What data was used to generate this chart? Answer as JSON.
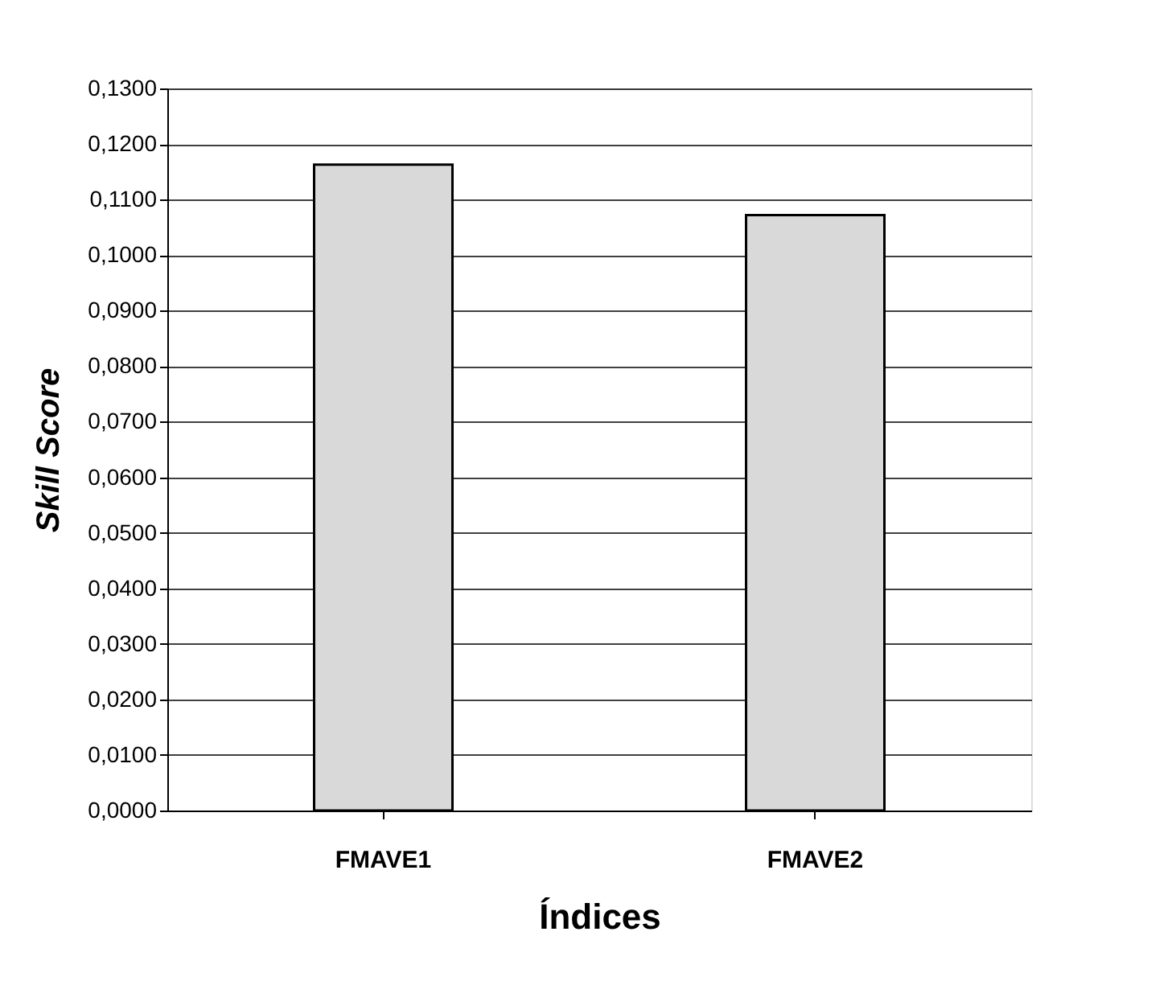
{
  "chart_data": {
    "type": "bar",
    "xlabel": "Índices",
    "ylabel": "Skill Score",
    "categories": [
      "FMAVE1",
      "FMAVE2"
    ],
    "values": [
      0.1163,
      0.1072
    ],
    "color": "#d9d9d9",
    "ylim": [
      0,
      0.13
    ],
    "yticks": [
      {
        "value": 0,
        "label": "0,0000"
      },
      {
        "value": 0.01,
        "label": "0,0100"
      },
      {
        "value": 0.02,
        "label": "0,0200"
      },
      {
        "value": 0.03,
        "label": "0,0300"
      },
      {
        "value": 0.04,
        "label": "0,0400"
      },
      {
        "value": 0.05,
        "label": "0,0500"
      },
      {
        "value": 0.06,
        "label": "0,0600"
      },
      {
        "value": 0.07,
        "label": "0,0700"
      },
      {
        "value": 0.08,
        "label": "0,0800"
      },
      {
        "value": 0.09,
        "label": "0,0900"
      },
      {
        "value": 0.1,
        "label": "0,1000"
      },
      {
        "value": 0.11,
        "label": "0,1100"
      },
      {
        "value": 0.12,
        "label": "0,1200"
      },
      {
        "value": 0.13,
        "label": "0,1300"
      }
    ],
    "grid": "y"
  }
}
